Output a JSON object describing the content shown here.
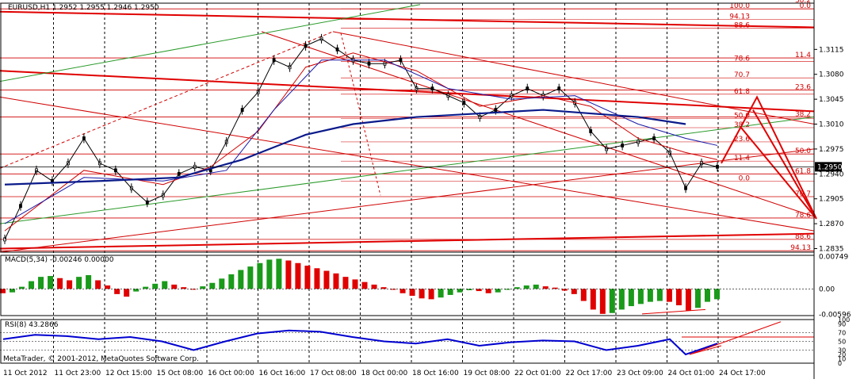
{
  "chart_data": {
    "type": "line",
    "instrument": {
      "header": "EURUSD,H1  1.2952 1.2955 1.2946 1.2950",
      "symbol": "EURUSD",
      "timeframe": "H1",
      "open": 1.2952,
      "high": 1.2955,
      "low": 1.2946,
      "close": 1.295
    },
    "price_axis": {
      "ylim": [
        1.283,
        1.318
      ],
      "ticks": [
        "1.3115",
        "1.3080",
        "1.3045",
        "1.3010",
        "1.2975",
        "1.2940",
        "1.2905",
        "1.2870",
        "1.2835"
      ],
      "current_price_label": "1.2950",
      "current_price": 1.295
    },
    "time_axis": {
      "labels": [
        "11 Oct 2012",
        "11 Oct 23:00",
        "12 Oct 15:00",
        "15 Oct 08:00",
        "16 Oct 00:00",
        "16 Oct 16:00",
        "17 Oct 08:00",
        "18 Oct 00:00",
        "18 Oct 16:00",
        "19 Oct 08:00",
        "22 Oct 01:00",
        "22 Oct 17:00",
        "23 Oct 09:00",
        "24 Oct 01:00",
        "24 Oct 17:00"
      ]
    },
    "price_series": [
      {
        "x": 0,
        "y": 1.2848
      },
      {
        "x": 1,
        "y": 1.2895
      },
      {
        "x": 2,
        "y": 1.2945
      },
      {
        "x": 3,
        "y": 1.293
      },
      {
        "x": 4,
        "y": 1.2955
      },
      {
        "x": 5,
        "y": 1.299
      },
      {
        "x": 6,
        "y": 1.2955
      },
      {
        "x": 7,
        "y": 1.2945
      },
      {
        "x": 8,
        "y": 1.292
      },
      {
        "x": 9,
        "y": 1.29
      },
      {
        "x": 10,
        "y": 1.291
      },
      {
        "x": 11,
        "y": 1.294
      },
      {
        "x": 12,
        "y": 1.295
      },
      {
        "x": 13,
        "y": 1.2945
      },
      {
        "x": 14,
        "y": 1.2985
      },
      {
        "x": 15,
        "y": 1.303
      },
      {
        "x": 16,
        "y": 1.3055
      },
      {
        "x": 17,
        "y": 1.31
      },
      {
        "x": 18,
        "y": 1.309
      },
      {
        "x": 19,
        "y": 1.312
      },
      {
        "x": 20,
        "y": 1.313
      },
      {
        "x": 21,
        "y": 1.3115
      },
      {
        "x": 22,
        "y": 1.31
      },
      {
        "x": 23,
        "y": 1.3095
      },
      {
        "x": 24,
        "y": 1.3095
      },
      {
        "x": 25,
        "y": 1.31
      },
      {
        "x": 26,
        "y": 1.306
      },
      {
        "x": 27,
        "y": 1.306
      },
      {
        "x": 28,
        "y": 1.305
      },
      {
        "x": 29,
        "y": 1.304
      },
      {
        "x": 30,
        "y": 1.302
      },
      {
        "x": 31,
        "y": 1.303
      },
      {
        "x": 32,
        "y": 1.305
      },
      {
        "x": 33,
        "y": 1.306
      },
      {
        "x": 34,
        "y": 1.305
      },
      {
        "x": 35,
        "y": 1.306
      },
      {
        "x": 36,
        "y": 1.304
      },
      {
        "x": 37,
        "y": 1.3
      },
      {
        "x": 38,
        "y": 1.2975
      },
      {
        "x": 39,
        "y": 1.298
      },
      {
        "x": 40,
        "y": 1.2985
      },
      {
        "x": 41,
        "y": 1.299
      },
      {
        "x": 42,
        "y": 1.297
      },
      {
        "x": 43,
        "y": 1.292
      },
      {
        "x": 44,
        "y": 1.2955
      },
      {
        "x": 45,
        "y": 1.295
      }
    ],
    "moving_averages": [
      {
        "color": "#d00000",
        "values": [
          {
            "x": 0,
            "y": 1.286
          },
          {
            "x": 5,
            "y": 1.2945
          },
          {
            "x": 10,
            "y": 1.2925
          },
          {
            "x": 13,
            "y": 1.295
          },
          {
            "x": 16,
            "y": 1.3
          },
          {
            "x": 19,
            "y": 1.309
          },
          {
            "x": 22,
            "y": 1.311
          },
          {
            "x": 26,
            "y": 1.3085
          },
          {
            "x": 30,
            "y": 1.3035
          },
          {
            "x": 34,
            "y": 1.305
          },
          {
            "x": 37,
            "y": 1.3035
          },
          {
            "x": 40,
            "y": 1.299
          },
          {
            "x": 43,
            "y": 1.297
          },
          {
            "x": 45,
            "y": 1.296
          }
        ]
      },
      {
        "color": "#1a1aa8",
        "values": [
          {
            "x": 0,
            "y": 1.287
          },
          {
            "x": 5,
            "y": 1.2935
          },
          {
            "x": 10,
            "y": 1.293
          },
          {
            "x": 14,
            "y": 1.2945
          },
          {
            "x": 17,
            "y": 1.303
          },
          {
            "x": 20,
            "y": 1.31
          },
          {
            "x": 24,
            "y": 1.31
          },
          {
            "x": 28,
            "y": 1.306
          },
          {
            "x": 32,
            "y": 1.3045
          },
          {
            "x": 36,
            "y": 1.305
          },
          {
            "x": 40,
            "y": 1.301
          },
          {
            "x": 43,
            "y": 1.299
          },
          {
            "x": 45,
            "y": 1.298
          }
        ]
      },
      {
        "color": "#0a1a8a",
        "values": [
          {
            "x": 0,
            "y": 1.2925
          },
          {
            "x": 6,
            "y": 1.293
          },
          {
            "x": 11,
            "y": 1.2935
          },
          {
            "x": 15,
            "y": 1.296
          },
          {
            "x": 19,
            "y": 1.2995
          },
          {
            "x": 22,
            "y": 1.301
          },
          {
            "x": 26,
            "y": 1.302
          },
          {
            "x": 30,
            "y": 1.3025
          },
          {
            "x": 34,
            "y": 1.303
          },
          {
            "x": 37,
            "y": 1.3025
          },
          {
            "x": 40,
            "y": 1.302
          },
          {
            "x": 43,
            "y": 1.301
          }
        ]
      }
    ],
    "fibonacci_right_labels": [
      {
        "label": "38.2",
        "y": 1.318
      },
      {
        "label": "0.0",
        "y": 1.3172
      },
      {
        "label": "11.4",
        "y": 1.3103
      },
      {
        "label": "23.6",
        "y": 1.3058
      },
      {
        "label": "38.2",
        "y": 1.302
      },
      {
        "label": "50.0",
        "y": 1.2968
      },
      {
        "label": "61.8",
        "y": 1.294
      },
      {
        "label": "70.7",
        "y": 1.2908
      },
      {
        "label": "78.6",
        "y": 1.2878
      },
      {
        "label": "88.6",
        "y": 1.2848
      },
      {
        "label": "94.13",
        "y": 1.2832
      }
    ],
    "fibonacci_upper_labels": [
      {
        "label": "100.0",
        "y": 1.3172
      },
      {
        "label": "94.13",
        "y": 1.3157
      },
      {
        "label": "88.6",
        "y": 1.3145
      },
      {
        "label": "78.6",
        "y": 1.3098
      },
      {
        "label": "70.7",
        "y": 1.3075
      },
      {
        "label": "61.8",
        "y": 1.3052
      }
    ],
    "fibonacci_lower_labels": [
      {
        "label": "50.0",
        "y": 1.3018
      },
      {
        "label": "38.2",
        "y": 1.3005
      },
      {
        "label": "23.6",
        "y": 1.2985
      },
      {
        "label": "11.4",
        "y": 1.2958
      },
      {
        "label": "0.0",
        "y": 1.293
      }
    ],
    "macd": {
      "label": "MACD(5,34) -0.00246 0.00000",
      "ylim": [
        -0.0062,
        0.0078
      ],
      "ticks": [
        "0.00749",
        "0.00",
        "-0.00596"
      ],
      "histogram": [
        -0.001,
        -0.0008,
        0.0005,
        0.0018,
        0.0028,
        0.003,
        0.0025,
        0.002,
        0.0028,
        0.0032,
        0.002,
        0.0008,
        -0.0012,
        -0.0018,
        -0.0006,
        0.0005,
        0.0012,
        0.0018,
        0.001,
        0.0004,
        0.0,
        0.0006,
        0.0014,
        0.0024,
        0.0034,
        0.0044,
        0.0052,
        0.006,
        0.0068,
        0.007,
        0.0066,
        0.006,
        0.0054,
        0.0048,
        0.0042,
        0.0036,
        0.0028,
        0.0022,
        0.0016,
        0.001,
        0.0004,
        -0.0002,
        -0.001,
        -0.0016,
        -0.0022,
        -0.0024,
        -0.002,
        -0.0014,
        -0.0008,
        -0.0003,
        -0.0005,
        -0.001,
        -0.0008,
        -0.0002,
        0.0004,
        0.0008,
        0.001,
        0.0006,
        0.0003,
        -0.0004,
        -0.0012,
        -0.0028,
        -0.0048,
        -0.0058,
        -0.0056,
        -0.0048,
        -0.004,
        -0.0035,
        -0.003,
        -0.0028,
        -0.003,
        -0.0038,
        -0.005,
        -0.0044,
        -0.003,
        -0.0024
      ]
    },
    "rsi": {
      "label": "RSI(8) 43.2866",
      "ylim": [
        0,
        100
      ],
      "ticks": [
        "100",
        "90",
        "70",
        "50",
        "30",
        "20",
        "10",
        "0"
      ],
      "levels": [
        70,
        50,
        30
      ],
      "values": [
        {
          "x": 0,
          "y": 55
        },
        {
          "x": 2,
          "y": 65
        },
        {
          "x": 4,
          "y": 62
        },
        {
          "x": 6,
          "y": 55
        },
        {
          "x": 8,
          "y": 60
        },
        {
          "x": 10,
          "y": 50
        },
        {
          "x": 12,
          "y": 30
        },
        {
          "x": 14,
          "y": 50
        },
        {
          "x": 16,
          "y": 68
        },
        {
          "x": 18,
          "y": 75
        },
        {
          "x": 20,
          "y": 72
        },
        {
          "x": 22,
          "y": 60
        },
        {
          "x": 24,
          "y": 50
        },
        {
          "x": 26,
          "y": 45
        },
        {
          "x": 28,
          "y": 55
        },
        {
          "x": 30,
          "y": 40
        },
        {
          "x": 32,
          "y": 48
        },
        {
          "x": 34,
          "y": 52
        },
        {
          "x": 36,
          "y": 50
        },
        {
          "x": 38,
          "y": 30
        },
        {
          "x": 40,
          "y": 40
        },
        {
          "x": 42,
          "y": 55
        },
        {
          "x": 43,
          "y": 20
        },
        {
          "x": 45,
          "y": 45
        }
      ]
    }
  },
  "footer": {
    "copyright": "MetaTrader, © 2001-2012, MetaQuotes Software Corp."
  }
}
